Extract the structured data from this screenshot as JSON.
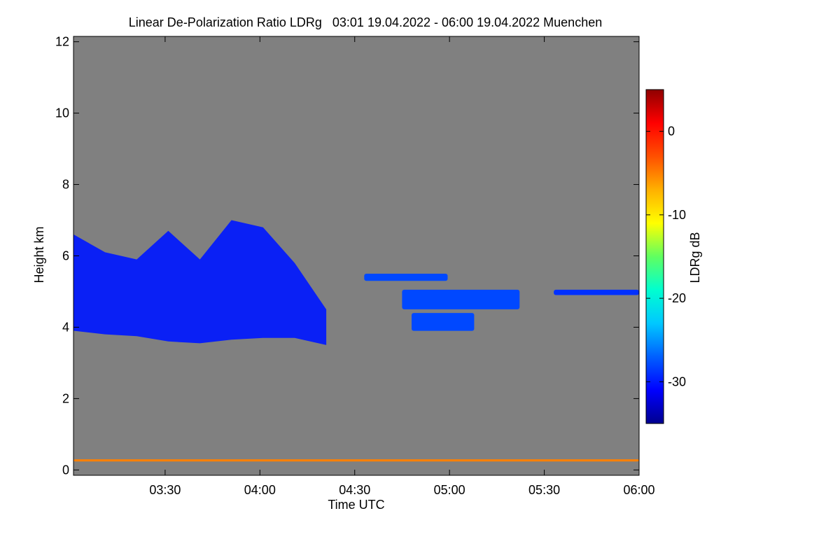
{
  "chart_data": {
    "type": "heatmap",
    "title": "Linear De-Polarization Ratio LDRg   03:01 19.04.2022 - 06:00 19.04.2022 Muenchen",
    "xlabel": "Time UTC",
    "ylabel": "Height km",
    "colorbar_label": "LDRg dB",
    "background_color": "#808080",
    "xlim": [
      3.0167,
      6.0
    ],
    "ylim": [
      -0.15,
      12.15
    ],
    "x_ticks": [
      {
        "value": 3.5,
        "label": "03:30"
      },
      {
        "value": 4.0,
        "label": "04:00"
      },
      {
        "value": 4.5,
        "label": "04:30"
      },
      {
        "value": 5.0,
        "label": "05:00"
      },
      {
        "value": 5.5,
        "label": "05:30"
      },
      {
        "value": 6.0,
        "label": "06:00"
      }
    ],
    "y_ticks": [
      {
        "value": 0,
        "label": "0"
      },
      {
        "value": 2,
        "label": "2"
      },
      {
        "value": 4,
        "label": "4"
      },
      {
        "value": 6,
        "label": "6"
      },
      {
        "value": 8,
        "label": "8"
      },
      {
        "value": 10,
        "label": "10"
      },
      {
        "value": 12,
        "label": "12"
      }
    ],
    "colorbar": {
      "range": [
        -35,
        5
      ],
      "ticks": [
        {
          "value": 0,
          "label": "0"
        },
        {
          "value": -10,
          "label": "-10"
        },
        {
          "value": -20,
          "label": "-20"
        },
        {
          "value": -30,
          "label": "-30"
        }
      ],
      "colors": [
        "#00008f",
        "#0000ff",
        "#0060ff",
        "#00c8ff",
        "#00ffd0",
        "#60ff60",
        "#ffff00",
        "#ffb000",
        "#ff5000",
        "#ff0000",
        "#8f0000"
      ]
    },
    "features": [
      {
        "name": "ice-cloud-layer-1",
        "ldr_db": -30,
        "time_start": 3.0167,
        "time_end": 4.35,
        "base_km": [
          3.9,
          3.8,
          3.75,
          3.6,
          3.55,
          3.65,
          3.7,
          3.7,
          3.5
        ],
        "top_km": [
          6.6,
          6.1,
          5.9,
          6.7,
          5.9,
          7.0,
          6.8,
          5.8,
          4.5
        ]
      },
      {
        "name": "cloud-patch-upper",
        "ldr_db": -28,
        "time_start": 4.55,
        "time_end": 4.99,
        "base_km": 5.3,
        "top_km": 5.5
      },
      {
        "name": "cloud-patch-middle",
        "ldr_db": -28,
        "time_start": 4.75,
        "time_end": 5.37,
        "base_km": 4.5,
        "top_km": 5.05
      },
      {
        "name": "cloud-patch-lower",
        "ldr_db": -28,
        "time_start": 4.8,
        "time_end": 5.13,
        "base_km": 3.9,
        "top_km": 4.4
      },
      {
        "name": "thin-layer-right",
        "ldr_db": -29,
        "time_start": 5.55,
        "time_end": 6.0,
        "base_km": 4.9,
        "top_km": 5.05
      },
      {
        "name": "near-surface-layer",
        "ldr_db": -5,
        "time_start": 3.0167,
        "time_end": 6.0,
        "base_km": 0.24,
        "top_km": 0.3
      }
    ]
  }
}
